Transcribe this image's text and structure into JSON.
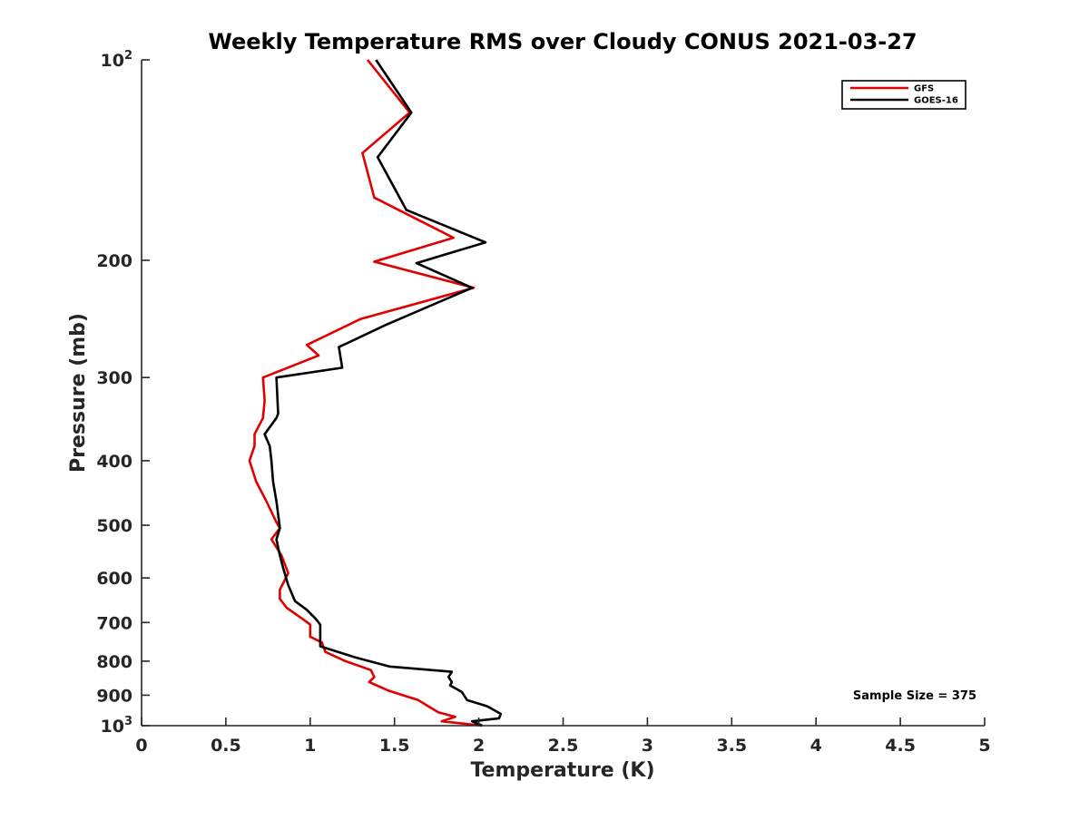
{
  "chart_data": {
    "type": "line",
    "title": "Weekly Temperature RMS over Cloudy CONUS 2021-03-27",
    "xlabel": "Temperature (K)",
    "ylabel": "Pressure (mb)",
    "xlim": [
      0,
      5
    ],
    "ylim": [
      100,
      1000
    ],
    "yscale": "log",
    "y_reversed": true,
    "xticks": [
      "0",
      "0.5",
      "1",
      "1.5",
      "2",
      "2.5",
      "3",
      "3.5",
      "4",
      "4.5",
      "5"
    ],
    "yticks": [
      {
        "value": 100,
        "base": "10",
        "exp": "2"
      },
      {
        "value": 200,
        "label": "200"
      },
      {
        "value": 300,
        "label": "300"
      },
      {
        "value": 400,
        "label": "400"
      },
      {
        "value": 500,
        "label": "500"
      },
      {
        "value": 600,
        "label": "600"
      },
      {
        "value": 700,
        "label": "700"
      },
      {
        "value": 800,
        "label": "800"
      },
      {
        "value": 900,
        "label": "900"
      },
      {
        "value": 1000,
        "base": "10",
        "exp": "3"
      }
    ],
    "grid": false,
    "legend_position": "top-right",
    "annotation": "Sample Size = 375",
    "series": [
      {
        "name": "GFS",
        "color": "#e00000",
        "points": [
          [
            1.34,
            100
          ],
          [
            1.59,
            120
          ],
          [
            1.31,
            138
          ],
          [
            1.38,
            161
          ],
          [
            1.85,
            185
          ],
          [
            1.38,
            201
          ],
          [
            1.97,
            220
          ],
          [
            1.3,
            245
          ],
          [
            0.98,
            268
          ],
          [
            1.05,
            278
          ],
          [
            0.72,
            300
          ],
          [
            0.73,
            325
          ],
          [
            0.72,
            345
          ],
          [
            0.67,
            365
          ],
          [
            0.67,
            380
          ],
          [
            0.64,
            400
          ],
          [
            0.68,
            430
          ],
          [
            0.74,
            460
          ],
          [
            0.8,
            495
          ],
          [
            0.82,
            505
          ],
          [
            0.77,
            525
          ],
          [
            0.83,
            555
          ],
          [
            0.87,
            590
          ],
          [
            0.82,
            625
          ],
          [
            0.82,
            645
          ],
          [
            0.86,
            665
          ],
          [
            0.95,
            690
          ],
          [
            1.0,
            705
          ],
          [
            1.0,
            735
          ],
          [
            1.07,
            750
          ],
          [
            1.09,
            775
          ],
          [
            1.21,
            800
          ],
          [
            1.36,
            825
          ],
          [
            1.38,
            845
          ],
          [
            1.35,
            860
          ],
          [
            1.46,
            885
          ],
          [
            1.64,
            915
          ],
          [
            1.7,
            935
          ],
          [
            1.76,
            955
          ],
          [
            1.86,
            970
          ],
          [
            1.78,
            985
          ],
          [
            2.02,
            1000
          ]
        ]
      },
      {
        "name": "GOES-16",
        "color": "#000000",
        "points": [
          [
            1.39,
            100
          ],
          [
            1.6,
            120
          ],
          [
            1.4,
            140
          ],
          [
            1.57,
            168
          ],
          [
            2.04,
            188
          ],
          [
            1.63,
            202
          ],
          [
            1.96,
            220
          ],
          [
            1.45,
            250
          ],
          [
            1.17,
            270
          ],
          [
            1.19,
            290
          ],
          [
            0.8,
            300
          ],
          [
            0.81,
            340
          ],
          [
            0.8,
            345
          ],
          [
            0.73,
            365
          ],
          [
            0.76,
            380
          ],
          [
            0.77,
            400
          ],
          [
            0.78,
            430
          ],
          [
            0.8,
            460
          ],
          [
            0.82,
            505
          ],
          [
            0.8,
            525
          ],
          [
            0.82,
            555
          ],
          [
            0.84,
            580
          ],
          [
            0.87,
            615
          ],
          [
            0.91,
            650
          ],
          [
            0.98,
            670
          ],
          [
            1.03,
            690
          ],
          [
            1.06,
            705
          ],
          [
            1.06,
            760
          ],
          [
            1.27,
            790
          ],
          [
            1.47,
            815
          ],
          [
            1.84,
            830
          ],
          [
            1.82,
            845
          ],
          [
            1.84,
            860
          ],
          [
            1.83,
            870
          ],
          [
            1.9,
            890
          ],
          [
            1.93,
            915
          ],
          [
            2.05,
            935
          ],
          [
            2.13,
            960
          ],
          [
            2.12,
            975
          ],
          [
            1.96,
            985
          ],
          [
            2.02,
            1000
          ]
        ]
      }
    ]
  }
}
